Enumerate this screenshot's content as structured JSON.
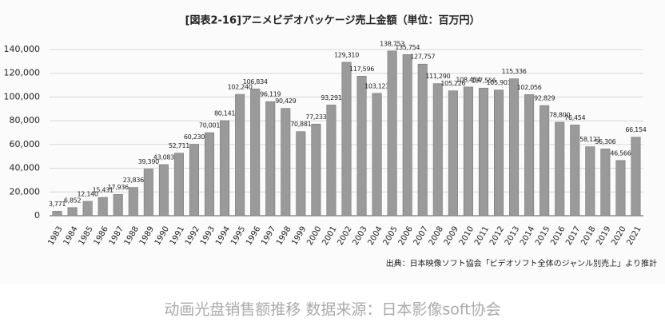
{
  "chart_data": {
    "type": "bar",
    "title": "[図表2-16]アニメビデオパッケージ売上金額（単位：百万円）",
    "source": "出典：日本映像ソフト協会「ビデオソフト全体のジャンル別売上」より推計",
    "caption": "动画光盘销售额推移 数据来源：日本影像soft协会",
    "categories": [
      "1983",
      "1984",
      "1985",
      "1986",
      "1987",
      "1988",
      "1989",
      "1990",
      "1991",
      "1992",
      "1993",
      "1994",
      "1995",
      "1996",
      "1997",
      "1998",
      "1999",
      "2000",
      "2001",
      "2002",
      "2003",
      "2004",
      "2005",
      "2006",
      "2007",
      "2008",
      "2009",
      "2010",
      "2011",
      "2012",
      "2013",
      "2014",
      "2015",
      "2016",
      "2017",
      "2018",
      "2019",
      "2020",
      "2021"
    ],
    "values": [
      3771,
      6852,
      12140,
      15431,
      17936,
      23836,
      39390,
      43083,
      52711,
      60230,
      70001,
      80141,
      102240,
      106834,
      96119,
      90429,
      70881,
      77233,
      93291,
      129310,
      117596,
      103123,
      138753,
      135754,
      127757,
      111290,
      105226,
      108454,
      107556,
      105903,
      115336,
      102056,
      92829,
      78800,
      76454,
      58121,
      56306,
      46566,
      66154
    ],
    "value_labels": [
      "3,771",
      "6,852",
      "12,140",
      "15,431",
      "17,936",
      "23,836",
      "39,390",
      "43,083",
      "52,711",
      "60,230",
      "70,001",
      "80,141",
      "102,240",
      "106,834",
      "96,119",
      "90,429",
      "70,881",
      "77,233",
      "93,291",
      "129,310",
      "117,596",
      "103,123",
      "138,753",
      "135,754",
      "127,757",
      "111,290",
      "105,226",
      "108,454",
      "107,556",
      "105,903",
      "115,336",
      "102,056",
      "92,829",
      "78,800",
      "76,454",
      "58,121",
      "56,306",
      "46,566",
      "66,154"
    ],
    "color": "#9a9a9a",
    "ylim": [
      0,
      140000
    ],
    "yticks": [
      0,
      {
        "value": 20000,
        "label": "20,000"
      },
      {
        "value": 40000,
        "label": "40,000"
      },
      {
        "value": 60000,
        "label": "60,000"
      },
      {
        "value": 80000,
        "label": "80,000"
      },
      {
        "value": 100000,
        "label": "100,000"
      },
      {
        "value": 120000,
        "label": "120,000"
      },
      {
        "value": 140000,
        "label": "140,000"
      }
    ],
    "grid": true
  }
}
